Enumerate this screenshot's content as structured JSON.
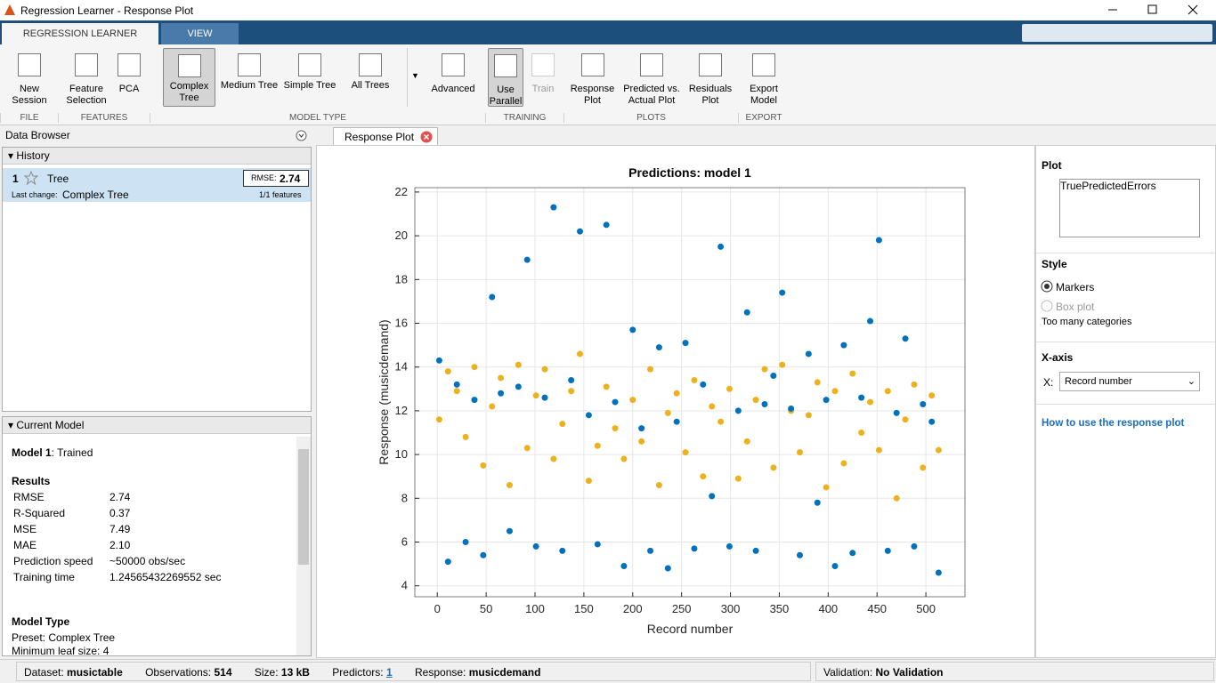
{
  "window": {
    "title": "Regression Learner - Response Plot"
  },
  "tabs": [
    "REGRESSION LEARNER",
    "VIEW"
  ],
  "toolstrip": {
    "buttons": [
      "New Session",
      "Feature Selection",
      "PCA",
      "Complex Tree",
      "Medium Tree",
      "Simple Tree",
      "All Trees",
      "Advanced",
      "Use Parallel",
      "Train",
      "Response Plot",
      "Predicted vs. Actual Plot",
      "Residuals Plot",
      "Export Model"
    ],
    "sections": [
      "FILE",
      "FEATURES",
      "MODEL TYPE",
      "TRAINING",
      "PLOTS",
      "EXPORT"
    ]
  },
  "data_browser": {
    "title": "Data Browser",
    "history_title": "History",
    "history": {
      "number": "1",
      "name": "Tree",
      "rmse_label": "RMSE:",
      "rmse": "2.74",
      "last_change_label": "Last change:",
      "last_change": "Complex Tree",
      "features": "1/1 features"
    },
    "current_model_title": "Current Model",
    "current_model": {
      "name": "Model 1",
      "status": ": Trained",
      "results_title": "Results",
      "results": [
        [
          "RMSE",
          "2.74"
        ],
        [
          "R-Squared",
          "0.37"
        ],
        [
          "MSE",
          "7.49"
        ],
        [
          "MAE",
          "2.10"
        ],
        [
          "Prediction speed",
          "~50000 obs/sec"
        ],
        [
          "Training time",
          "1.24565432269552 sec"
        ]
      ],
      "model_type_title": "Model Type",
      "model_type": [
        "Preset: Complex Tree",
        "Minimum leaf size: 4"
      ]
    }
  },
  "document_tab": "Response Plot",
  "chart_data": {
    "type": "scatter",
    "title": "Predictions: model 1",
    "xlabel": "Record number",
    "ylabel": "Response (musicdemand)",
    "xlim": [
      -23,
      540
    ],
    "ylim": [
      3.5,
      22.2
    ],
    "xticks": [
      0,
      50,
      100,
      150,
      200,
      250,
      300,
      350,
      400,
      450,
      500
    ],
    "yticks": [
      4,
      6,
      8,
      10,
      12,
      14,
      16,
      18,
      20,
      22
    ],
    "grid": true,
    "x": [
      2,
      11,
      20,
      29,
      38,
      47,
      56,
      65,
      74,
      83,
      92,
      101,
      110,
      119,
      128,
      137,
      146,
      155,
      164,
      173,
      182,
      191,
      200,
      209,
      218,
      227,
      236,
      245,
      254,
      263,
      272,
      281,
      290,
      299,
      308,
      317,
      326,
      335,
      344,
      353,
      362,
      371,
      380,
      389,
      398,
      407,
      416,
      425,
      434,
      443,
      452,
      461,
      470,
      479,
      488,
      497,
      506,
      513
    ],
    "series": [
      {
        "name": "True",
        "color": "#0072bd",
        "values": [
          14.3,
          5.1,
          13.2,
          6.0,
          12.5,
          5.4,
          17.2,
          12.8,
          6.5,
          13.1,
          18.9,
          5.8,
          12.6,
          21.3,
          5.6,
          13.4,
          20.2,
          11.8,
          5.9,
          20.5,
          12.4,
          4.9,
          15.7,
          11.2,
          5.6,
          14.9,
          4.8,
          11.5,
          15.1,
          5.7,
          13.2,
          8.1,
          19.5,
          5.8,
          12.0,
          16.5,
          5.6,
          12.3,
          13.6,
          17.4,
          12.1,
          5.4,
          14.6,
          7.8,
          12.5,
          4.9,
          15.0,
          5.5,
          12.6,
          16.1,
          19.8,
          5.6,
          11.9,
          15.3,
          5.8,
          12.3,
          11.5,
          4.6
        ]
      },
      {
        "name": "Predicted",
        "color": "#edb120",
        "values": [
          11.6,
          13.8,
          12.9,
          10.8,
          14.0,
          9.5,
          12.2,
          13.5,
          8.6,
          14.1,
          10.3,
          12.7,
          13.9,
          9.8,
          11.4,
          12.9,
          14.6,
          8.8,
          10.4,
          13.1,
          11.2,
          9.8,
          12.5,
          10.6,
          13.9,
          8.6,
          11.9,
          12.8,
          10.1,
          13.4,
          9.0,
          12.2,
          11.5,
          13.0,
          8.9,
          10.6,
          12.5,
          13.9,
          9.4,
          14.1,
          12.0,
          10.1,
          11.8,
          13.3,
          8.5,
          12.9,
          9.6,
          13.7,
          11.0,
          12.4,
          10.2,
          12.9,
          8.0,
          11.6,
          13.2,
          9.4,
          12.7,
          10.2
        ]
      }
    ]
  },
  "plot_panel": {
    "plot_title": "Plot",
    "errors": {
      "name": "Errors",
      "color": "#d95319"
    },
    "style_title": "Style",
    "style_options": [
      "Markers",
      "Box plot"
    ],
    "style_note": "Too many categories",
    "xaxis_title": "X-axis",
    "x_label": "X:",
    "x_value": "Record number",
    "help_link": "How to use the response plot"
  },
  "status_bar": {
    "dataset_label": "Dataset:",
    "dataset": "musictable",
    "observations_label": "Observations:",
    "observations": "514",
    "size_label": "Size:",
    "size": "13 kB",
    "predictors_label": "Predictors:",
    "predictors": "1",
    "response_label": "Response:",
    "response": "musicdemand",
    "validation_label": "Validation:",
    "validation": "No Validation"
  }
}
